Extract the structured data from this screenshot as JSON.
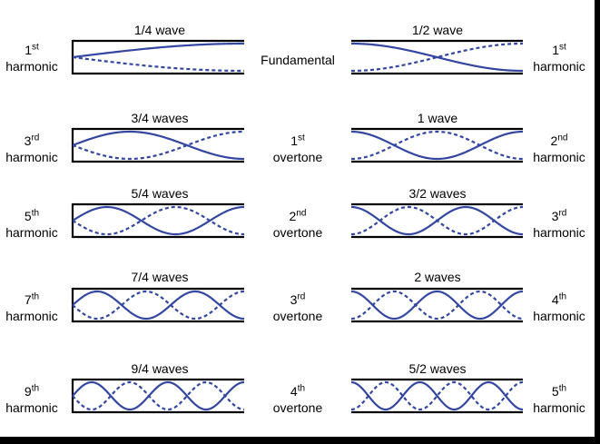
{
  "colors": {
    "wave": "#3346a0",
    "tube": "#000000",
    "background": "#ffffff"
  },
  "left_panels": [
    {
      "title": "1/4 wave",
      "quarters": 1,
      "harmonic": {
        "num": "1",
        "sup": "st",
        "word": "harmonic"
      }
    },
    {
      "title": "3/4 waves",
      "quarters": 3,
      "harmonic": {
        "num": "3",
        "sup": "rd",
        "word": "harmonic"
      }
    },
    {
      "title": "5/4 waves",
      "quarters": 5,
      "harmonic": {
        "num": "5",
        "sup": "th",
        "word": "harmonic"
      }
    },
    {
      "title": "7/4 waves",
      "quarters": 7,
      "harmonic": {
        "num": "7",
        "sup": "th",
        "word": "harmonic"
      }
    },
    {
      "title": "9/4 waves",
      "quarters": 9,
      "harmonic": {
        "num": "9",
        "sup": "th",
        "word": "harmonic"
      }
    }
  ],
  "right_panels": [
    {
      "title": "1/2 wave",
      "halves": 1,
      "harmonic": {
        "num": "1",
        "sup": "st",
        "word": "harmonic"
      }
    },
    {
      "title": "1 wave",
      "halves": 2,
      "harmonic": {
        "num": "2",
        "sup": "nd",
        "word": "harmonic"
      }
    },
    {
      "title": "3/2 waves",
      "halves": 3,
      "harmonic": {
        "num": "3",
        "sup": "rd",
        "word": "harmonic"
      }
    },
    {
      "title": "2 waves",
      "halves": 4,
      "harmonic": {
        "num": "4",
        "sup": "th",
        "word": "harmonic"
      }
    },
    {
      "title": "5/2 waves",
      "halves": 5,
      "harmonic": {
        "num": "5",
        "sup": "th",
        "word": "harmonic"
      }
    }
  ],
  "center_labels": [
    {
      "text": "Fundamental"
    },
    {
      "num": "1",
      "sup": "st",
      "word": "overtone"
    },
    {
      "num": "2",
      "sup": "nd",
      "word": "overtone"
    },
    {
      "num": "3",
      "sup": "rd",
      "word": "overtone"
    },
    {
      "num": "4",
      "sup": "th",
      "word": "overtone"
    }
  ]
}
